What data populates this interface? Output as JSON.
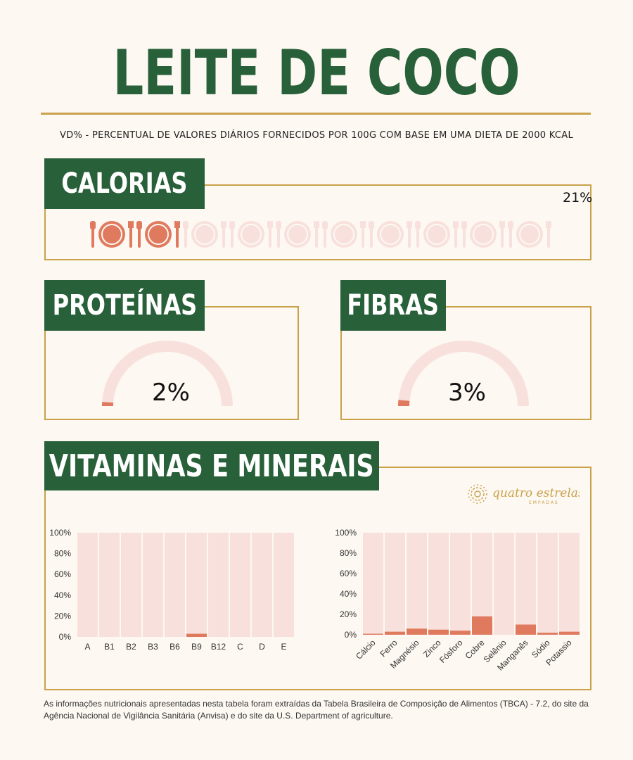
{
  "title": "LEITE DE COCO",
  "subtitle": "VD% - PERCENTUAL DE VALORES DIÁRIOS FORNECIDOS POR 100G COM BASE EM UMA DIETA DE 2000 KCAL",
  "colors": {
    "green": "#286039",
    "gold": "#c9a24a",
    "accent": "#e07a5f",
    "pale": "#f8e1dc",
    "bg": "#fdf8f2"
  },
  "calorias": {
    "label": "CALORIAS",
    "value_text": "21%",
    "value": 21,
    "icon": "plate-with-utensils-icon",
    "icons_total": 10,
    "icons_filled": 2
  },
  "proteinas": {
    "label": "PROTEÍNAS",
    "value_text": "2%",
    "value": 2
  },
  "fibras": {
    "label": "FIBRAS",
    "value_text": "3%",
    "value": 3
  },
  "vitaminas_minerais": {
    "label": "VITAMINAS E MINERAIS"
  },
  "logo": {
    "text": "quatro estrelas",
    "subtext": "EMPADAS",
    "icon": "mandala-icon"
  },
  "chart_data": [
    {
      "type": "bar",
      "categories": [
        "A",
        "B1",
        "B2",
        "B3",
        "B6",
        "B9",
        "B12",
        "C",
        "D",
        "E"
      ],
      "values": [
        0,
        0,
        0,
        0,
        0,
        3,
        0,
        0,
        0,
        0
      ],
      "yticks": [
        "0%",
        "20%",
        "40%",
        "60%",
        "80%",
        "100%"
      ],
      "ylim": [
        0,
        100
      ],
      "grid": false,
      "background_bars": true
    },
    {
      "type": "bar",
      "categories": [
        "Cálcio",
        "Ferro",
        "Magnésio",
        "Zinco",
        "Fósforo",
        "Cobre",
        "Selênio",
        "Manganês",
        "Sódio",
        "Potassio"
      ],
      "values": [
        1,
        3,
        6,
        5,
        4,
        18,
        0,
        10,
        2,
        3
      ],
      "yticks": [
        "0%",
        "20%",
        "40%",
        "60%",
        "80%",
        "100%"
      ],
      "ylim": [
        0,
        100
      ],
      "grid": false,
      "background_bars": true
    }
  ],
  "footer": "As informações nutricionais apresentadas nesta tabela foram extraídas da Tabela Brasileira de Composição de Alimentos (TBCA) - 7.2, do site da Agência Nacional de Vigilância Sanitária (Anvisa) e do site da U.S. Department of agriculture."
}
